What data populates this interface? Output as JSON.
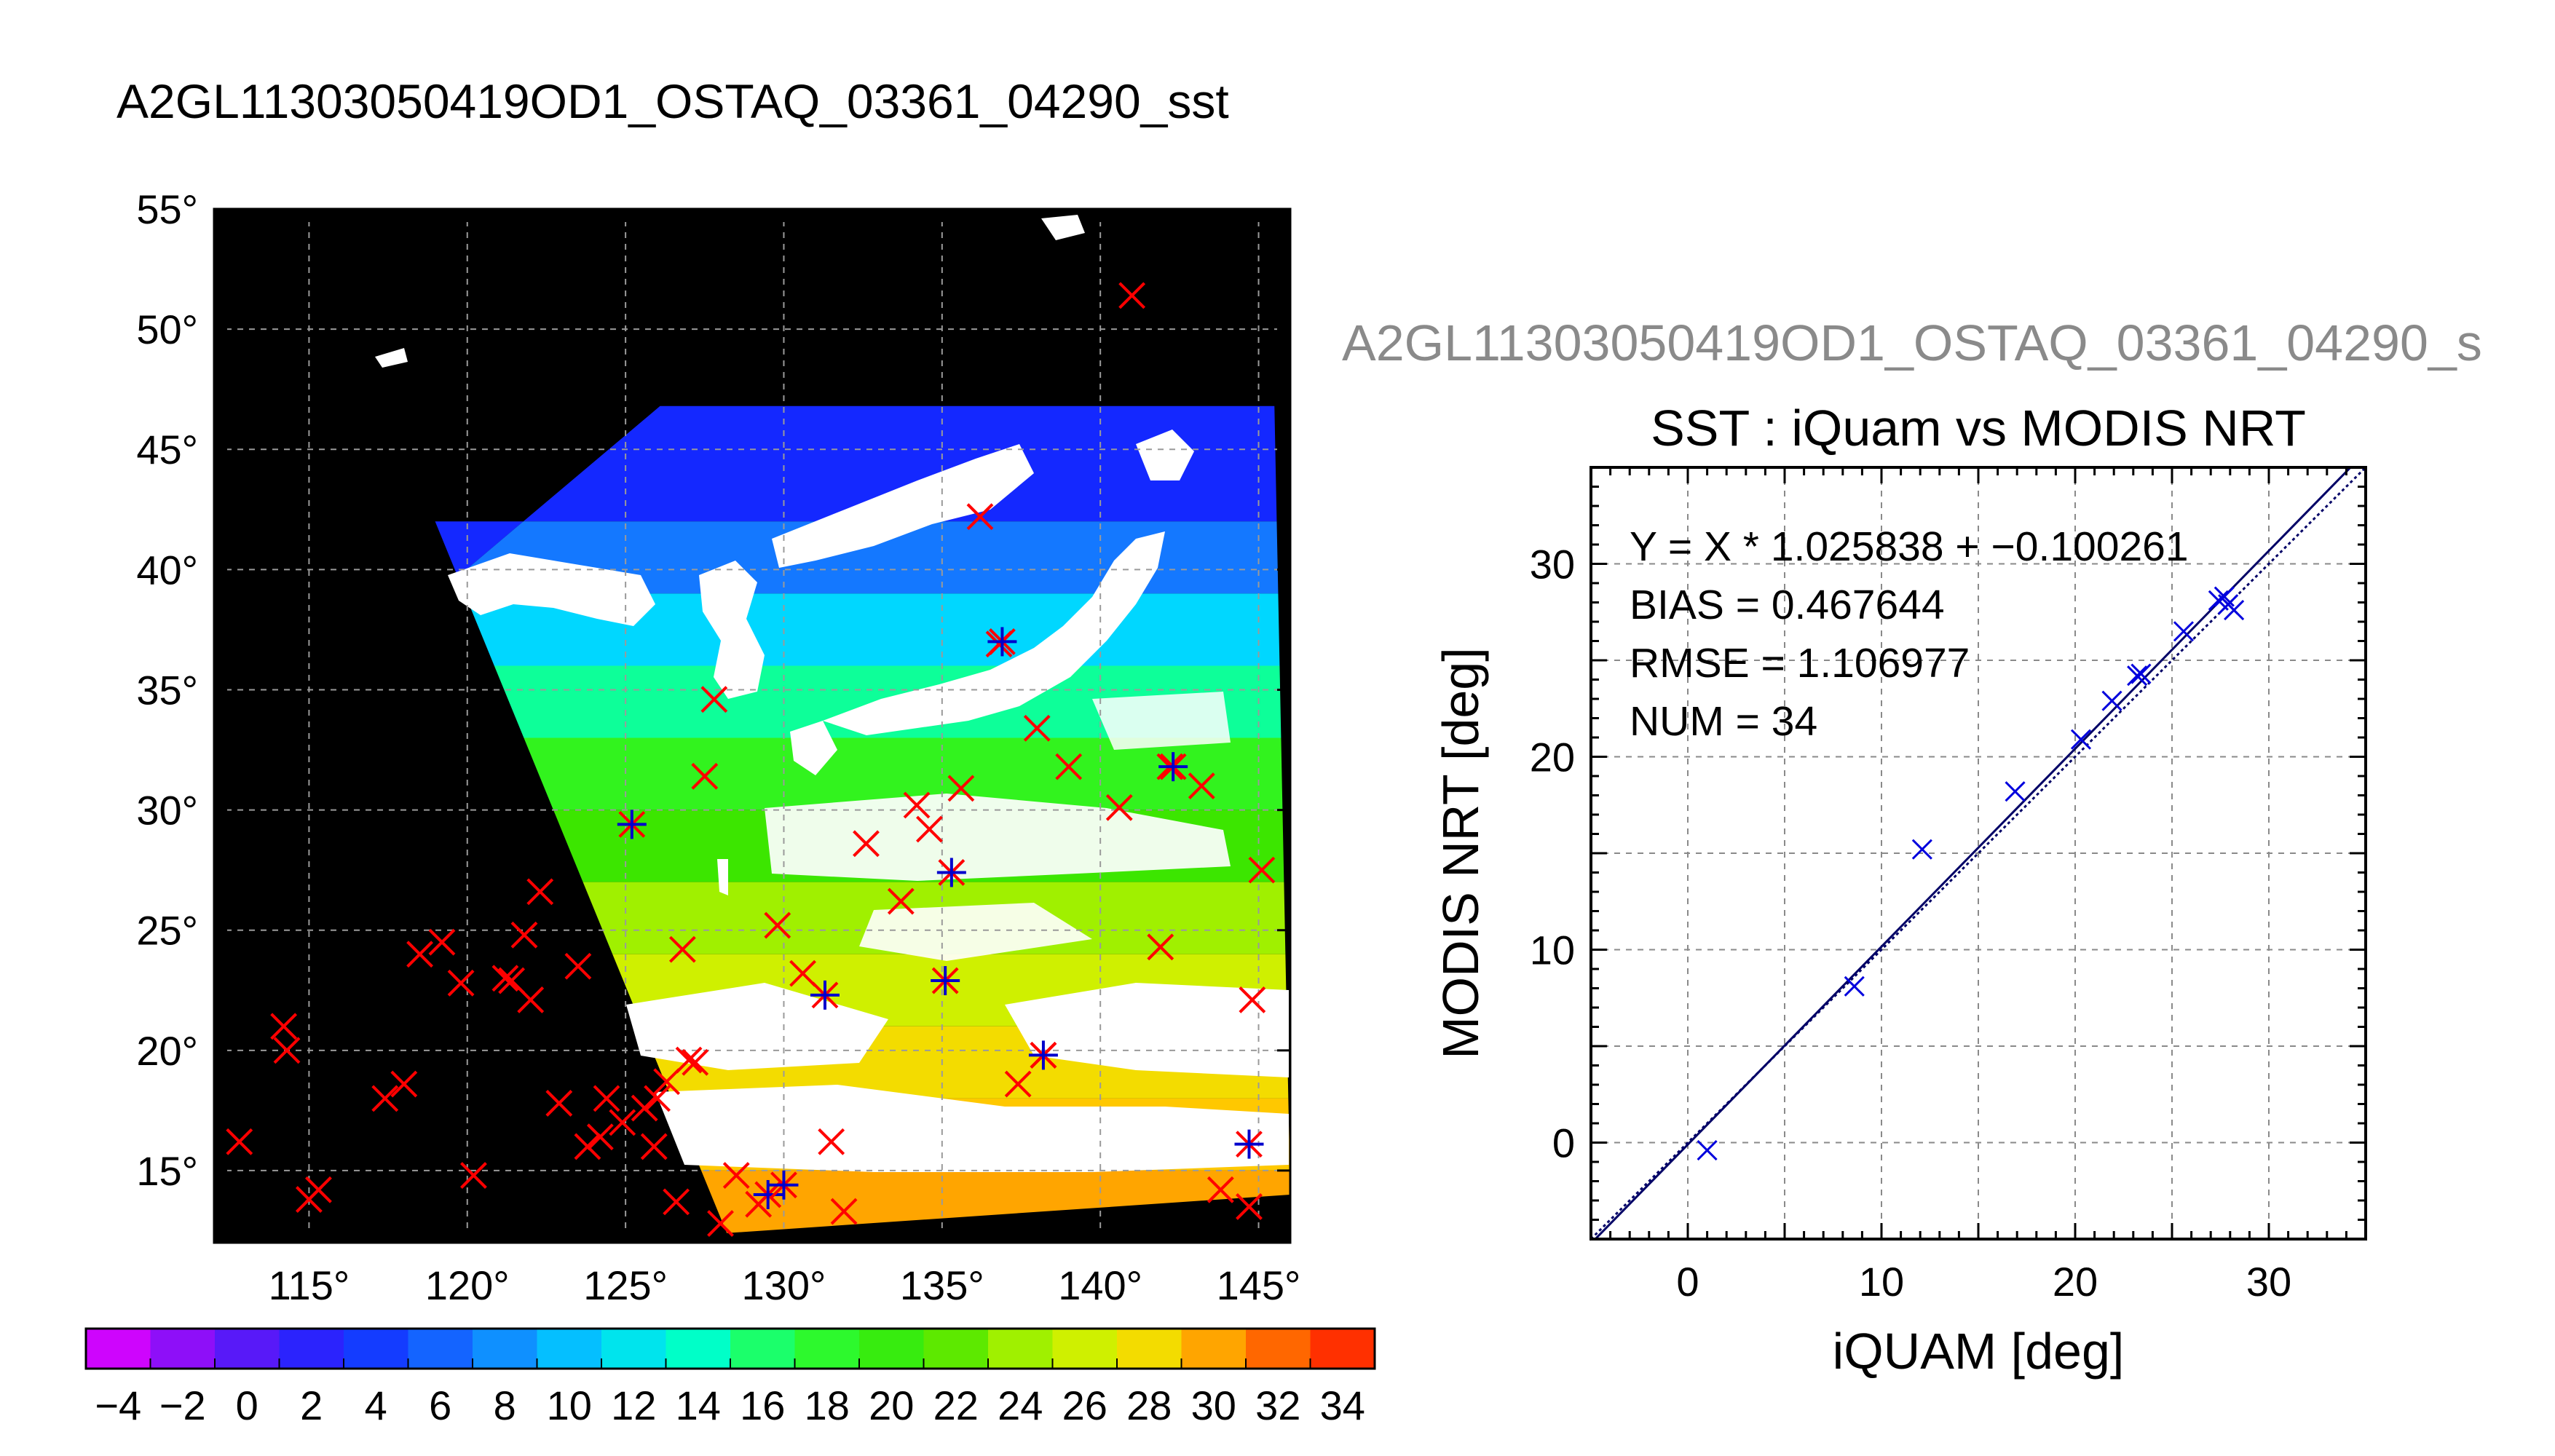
{
  "map_panel": {
    "title": "A2GL11303050419OD1_OSTAQ_03361_04290_sst",
    "lon_ticks": [
      "115°",
      "120°",
      "125°",
      "130°",
      "135°",
      "140°",
      "145°"
    ],
    "lat_ticks": [
      "55°",
      "50°",
      "45°",
      "40°",
      "35°",
      "30°",
      "25°",
      "20°",
      "15°"
    ],
    "colorbar": {
      "ticks": [
        "−4",
        "−2",
        "0",
        "2",
        "4",
        "6",
        "8",
        "10",
        "12",
        "14",
        "16",
        "18",
        "20",
        "22",
        "24",
        "26",
        "28",
        "30",
        "32",
        "34"
      ],
      "min": -5,
      "max": 35,
      "step": 2
    },
    "colors": {
      "background": "#000000",
      "land": "#ffffff",
      "grid": "#9a9a9a",
      "marker_red": "#ff0000",
      "marker_blue": "#0000cc"
    }
  },
  "scatter_panel": {
    "header": "A2GL11303050419OD1_OSTAQ_03361_04290_s",
    "title": "SST : iQuam vs MODIS NRT",
    "xlabel": "iQUAM [deg]",
    "ylabel": "MODIS NRT [deg]",
    "xticks": [
      "0",
      "10",
      "20",
      "30"
    ],
    "yticks": [
      "0",
      "10",
      "20",
      "30"
    ],
    "stats": [
      "Y = X * 1.025838 + −0.100261",
      "BIAS = 0.467644",
      "RMSE = 1.106977",
      "NUM = 34"
    ]
  },
  "chart_data": [
    {
      "type": "heatmap",
      "title": "A2GL11303050419OD1_OSTAQ_03361_04290_sst",
      "xlim": [
        112,
        146
      ],
      "ylim": [
        12,
        55
      ],
      "xticks": [
        115,
        120,
        125,
        130,
        135,
        140,
        145
      ],
      "yticks": [
        15,
        20,
        25,
        30,
        35,
        40,
        45,
        50,
        55
      ],
      "grid": true,
      "colorbar_range": [
        -5,
        35
      ],
      "colorbar_ticks": [
        -4,
        -2,
        0,
        2,
        4,
        6,
        8,
        10,
        12,
        14,
        16,
        18,
        20,
        22,
        24,
        26,
        28,
        30,
        32,
        34
      ],
      "markers_red": [
        [
          112.8,
          16.2
        ],
        [
          114.2,
          21.0
        ],
        [
          114.3,
          20.0
        ],
        [
          115.0,
          13.8
        ],
        [
          115.3,
          14.2
        ],
        [
          117.4,
          18.0
        ],
        [
          118.0,
          18.6
        ],
        [
          118.5,
          24.0
        ],
        [
          119.2,
          24.5
        ],
        [
          119.8,
          22.8
        ],
        [
          120.2,
          14.8
        ],
        [
          121.2,
          23.0
        ],
        [
          121.4,
          22.9
        ],
        [
          121.8,
          24.8
        ],
        [
          122.0,
          22.1
        ],
        [
          122.3,
          26.6
        ],
        [
          122.9,
          17.8
        ],
        [
          123.5,
          23.5
        ],
        [
          123.8,
          16.0
        ],
        [
          124.2,
          16.4
        ],
        [
          124.4,
          18.0
        ],
        [
          124.9,
          17.0
        ],
        [
          125.6,
          17.6
        ],
        [
          125.9,
          16.0
        ],
        [
          126.0,
          18.0
        ],
        [
          126.3,
          18.7
        ],
        [
          126.6,
          13.7
        ],
        [
          126.8,
          24.2
        ],
        [
          127.0,
          19.6
        ],
        [
          127.2,
          19.5
        ],
        [
          127.5,
          31.4
        ],
        [
          127.8,
          34.6
        ],
        [
          128.0,
          12.8
        ],
        [
          128.5,
          14.8
        ],
        [
          129.2,
          13.6
        ],
        [
          129.8,
          25.2
        ],
        [
          130.6,
          23.2
        ],
        [
          131.5,
          16.2
        ],
        [
          131.9,
          13.3
        ],
        [
          132.6,
          28.6
        ],
        [
          133.7,
          26.2
        ],
        [
          134.2,
          30.2
        ],
        [
          134.6,
          29.2
        ],
        [
          135.6,
          30.9
        ],
        [
          136.2,
          42.2
        ],
        [
          136.8,
          36.9
        ],
        [
          137.4,
          18.6
        ],
        [
          138.0,
          33.4
        ],
        [
          138.2,
          19.8
        ],
        [
          139.0,
          31.8
        ],
        [
          140.6,
          30.1
        ],
        [
          141.0,
          51.4
        ],
        [
          141.9,
          24.3
        ],
        [
          142.2,
          31.8
        ],
        [
          143.2,
          31.0
        ],
        [
          143.8,
          14.2
        ],
        [
          144.7,
          13.5
        ],
        [
          144.8,
          22.1
        ],
        [
          145.1,
          27.5
        ]
      ],
      "markers_blue": [
        [
          125.2,
          29.4
        ],
        [
          129.5,
          14.0
        ],
        [
          130.0,
          14.4
        ],
        [
          131.3,
          22.3
        ],
        [
          135.1,
          22.9
        ],
        [
          135.3,
          27.4
        ],
        [
          136.9,
          37.0
        ],
        [
          138.2,
          19.8
        ],
        [
          142.3,
          31.8
        ],
        [
          144.7,
          16.1
        ]
      ]
    },
    {
      "type": "scatter",
      "title": "SST : iQuam vs MODIS NRT",
      "xlabel": "iQUAM [deg]",
      "ylabel": "MODIS NRT [deg]",
      "xlim": [
        -5,
        35
      ],
      "ylim": [
        -5,
        35
      ],
      "xticks": [
        0,
        10,
        20,
        30
      ],
      "yticks": [
        0,
        10,
        20,
        30
      ],
      "grid": true,
      "points": [
        [
          1.0,
          -0.4
        ],
        [
          8.6,
          8.1
        ],
        [
          12.1,
          15.2
        ],
        [
          16.9,
          18.2
        ],
        [
          20.3,
          20.9
        ],
        [
          21.9,
          22.9
        ],
        [
          23.2,
          24.2
        ],
        [
          23.4,
          24.3
        ],
        [
          25.6,
          26.5
        ],
        [
          27.4,
          28.1
        ],
        [
          27.7,
          28.3
        ],
        [
          27.9,
          27.9
        ],
        [
          28.2,
          27.6
        ]
      ],
      "regression": {
        "slope": 1.025838,
        "intercept": -0.100261
      },
      "identity_line": true
    }
  ]
}
